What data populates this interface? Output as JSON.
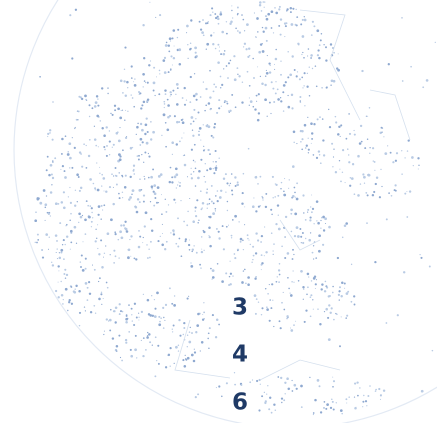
{
  "labels": [
    "3",
    "4",
    "6"
  ]
}
